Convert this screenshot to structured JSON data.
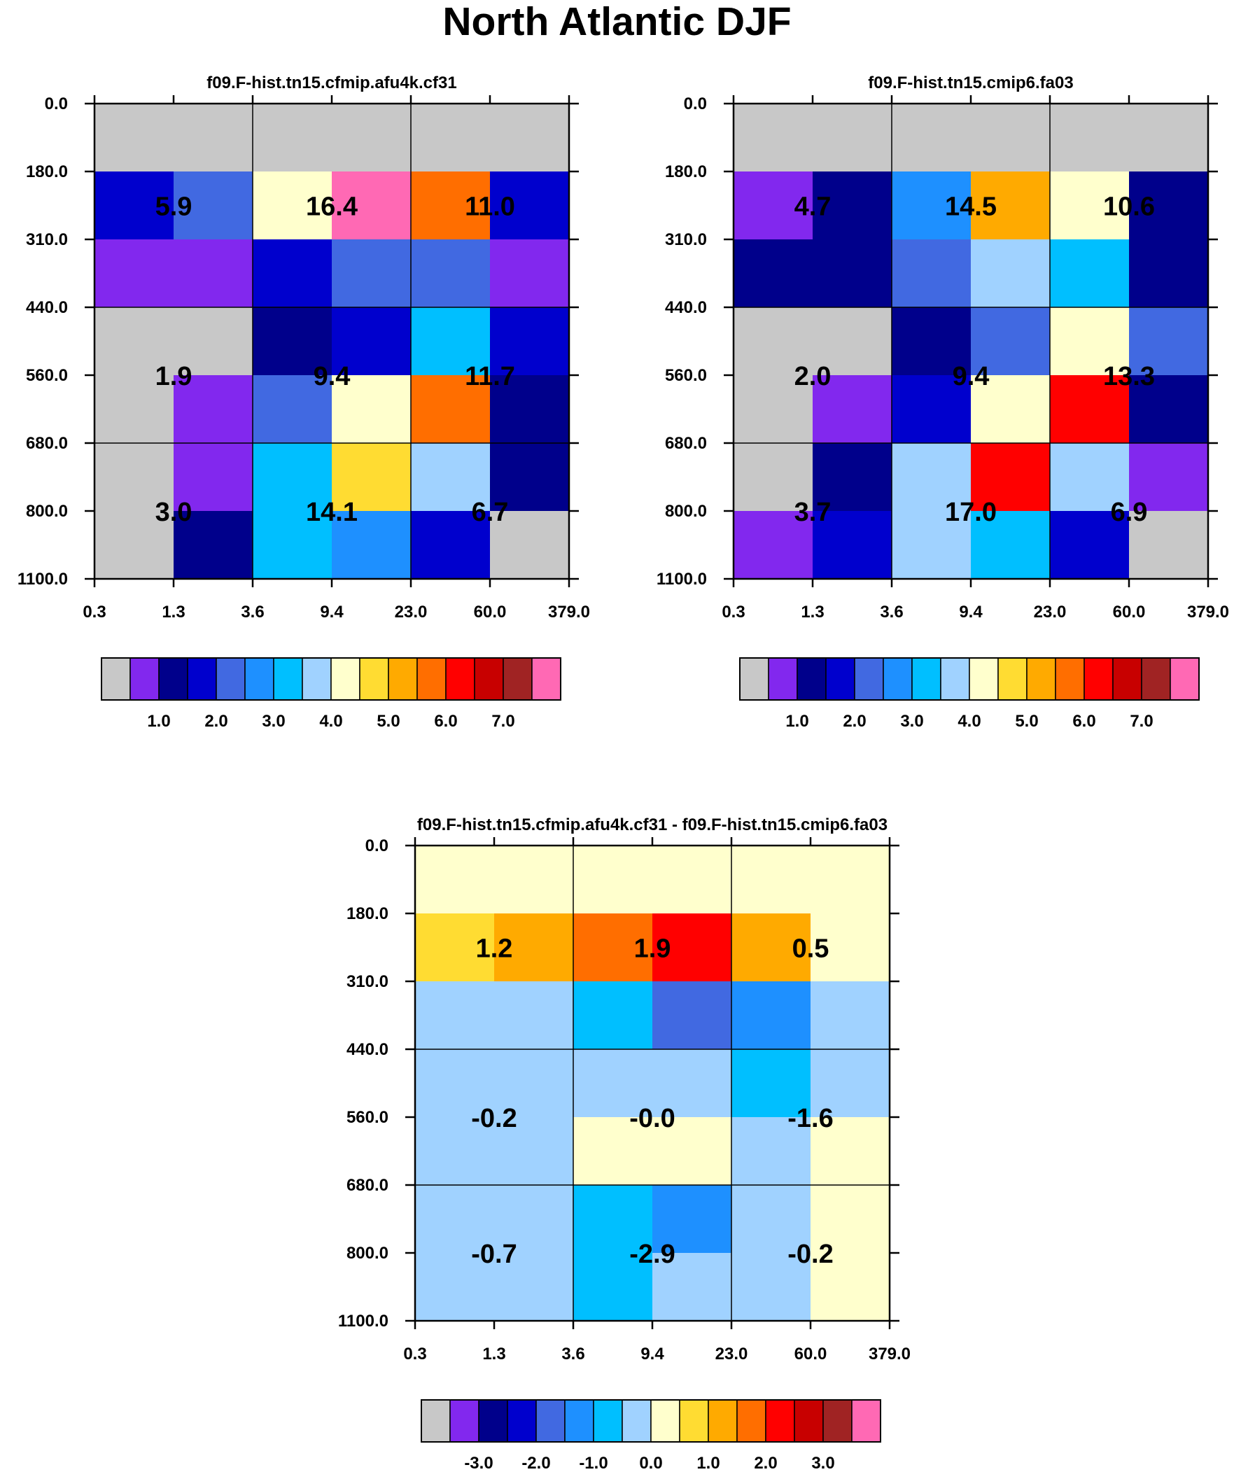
{
  "title": "North Atlantic DJF",
  "palette": {
    "c0": "#c8c8c8",
    "c1": "#8228ee",
    "c2": "#00008b",
    "c3": "#0000cd",
    "c4": "#4169e1",
    "c5": "#1e90ff",
    "c6": "#00bfff",
    "c7": "#a0d2ff",
    "c8": "#ffffcd",
    "c9": "#ffdc32",
    "c10": "#ffaa00",
    "c11": "#ff6e00",
    "c12": "#ff0000",
    "c13": "#c80000",
    "c14": "#a02323",
    "c15": "#ff69b4"
  },
  "chart_data": [
    {
      "type": "heatmap",
      "id": "panel-cf31",
      "title": "f09.F-hist.tn15.cfmip.afu4k.cf31",
      "xlabel": "",
      "ylabel": "",
      "x_ticks": [
        "0.3",
        "1.3",
        "3.6",
        "9.4",
        "23.0",
        "60.0",
        "379.0"
      ],
      "y_ticks": [
        "0.0",
        "180.0",
        "310.0",
        "440.0",
        "560.0",
        "680.0",
        "800.0",
        "1100.0"
      ],
      "grid": {
        "rows": [
          [
            "c0",
            "c0",
            "c0",
            "c0",
            "c0",
            "c0"
          ],
          [
            "c3",
            "c4",
            "c8",
            "c15",
            "c11",
            "c3"
          ],
          [
            "c1",
            "c1",
            "c3",
            "c4",
            "c4",
            "c1"
          ],
          [
            "c0",
            "c0",
            "c2",
            "c3",
            "c6",
            "c3"
          ],
          [
            "c0",
            "c1",
            "c4",
            "c8",
            "c11",
            "c2"
          ],
          [
            "c0",
            "c1",
            "c6",
            "c9",
            "c7",
            "c2"
          ],
          [
            "c0",
            "c2",
            "c6",
            "c5",
            "c3",
            "c0"
          ]
        ]
      },
      "labels": [
        {
          "text": "5.9",
          "block_row": 0,
          "block_col": 0
        },
        {
          "text": "16.4",
          "block_row": 0,
          "block_col": 1
        },
        {
          "text": "11.0",
          "block_row": 0,
          "block_col": 2
        },
        {
          "text": "1.9",
          "block_row": 1,
          "block_col": 0
        },
        {
          "text": "9.4",
          "block_row": 1,
          "block_col": 1
        },
        {
          "text": "11.7",
          "block_row": 1,
          "block_col": 2
        },
        {
          "text": "3.0",
          "block_row": 2,
          "block_col": 0
        },
        {
          "text": "14.1",
          "block_row": 2,
          "block_col": 1
        },
        {
          "text": "6.7",
          "block_row": 2,
          "block_col": 2
        }
      ],
      "colorbar": {
        "colors": [
          "c0",
          "c1",
          "c2",
          "c3",
          "c4",
          "c5",
          "c6",
          "c7",
          "c8",
          "c9",
          "c10",
          "c11",
          "c12",
          "c13",
          "c14",
          "c15"
        ],
        "tick_labels": [
          "1.0",
          "2.0",
          "3.0",
          "4.0",
          "5.0",
          "6.0",
          "7.0"
        ],
        "tick_positions": [
          2,
          4,
          6,
          8,
          10,
          12,
          14
        ]
      }
    },
    {
      "type": "heatmap",
      "id": "panel-fa03",
      "title": "f09.F-hist.tn15.cmip6.fa03",
      "xlabel": "",
      "ylabel": "",
      "x_ticks": [
        "0.3",
        "1.3",
        "3.6",
        "9.4",
        "23.0",
        "60.0",
        "379.0"
      ],
      "y_ticks": [
        "0.0",
        "180.0",
        "310.0",
        "440.0",
        "560.0",
        "680.0",
        "800.0",
        "1100.0"
      ],
      "grid": {
        "rows": [
          [
            "c0",
            "c0",
            "c0",
            "c0",
            "c0",
            "c0"
          ],
          [
            "c1",
            "c2",
            "c5",
            "c10",
            "c8",
            "c2"
          ],
          [
            "c2",
            "c2",
            "c4",
            "c7",
            "c6",
            "c2"
          ],
          [
            "c0",
            "c0",
            "c2",
            "c4",
            "c8",
            "c4"
          ],
          [
            "c0",
            "c1",
            "c3",
            "c8",
            "c12",
            "c2"
          ],
          [
            "c0",
            "c2",
            "c7",
            "c12",
            "c7",
            "c1"
          ],
          [
            "c1",
            "c3",
            "c7",
            "c6",
            "c3",
            "c0"
          ]
        ]
      },
      "labels": [
        {
          "text": "4.7",
          "block_row": 0,
          "block_col": 0
        },
        {
          "text": "14.5",
          "block_row": 0,
          "block_col": 1
        },
        {
          "text": "10.6",
          "block_row": 0,
          "block_col": 2
        },
        {
          "text": "2.0",
          "block_row": 1,
          "block_col": 0
        },
        {
          "text": "9.4",
          "block_row": 1,
          "block_col": 1
        },
        {
          "text": "13.3",
          "block_row": 1,
          "block_col": 2
        },
        {
          "text": "3.7",
          "block_row": 2,
          "block_col": 0
        },
        {
          "text": "17.0",
          "block_row": 2,
          "block_col": 1
        },
        {
          "text": "6.9",
          "block_row": 2,
          "block_col": 2
        }
      ],
      "colorbar": {
        "colors": [
          "c0",
          "c1",
          "c2",
          "c3",
          "c4",
          "c5",
          "c6",
          "c7",
          "c8",
          "c9",
          "c10",
          "c11",
          "c12",
          "c13",
          "c14",
          "c15"
        ],
        "tick_labels": [
          "1.0",
          "2.0",
          "3.0",
          "4.0",
          "5.0",
          "6.0",
          "7.0"
        ],
        "tick_positions": [
          2,
          4,
          6,
          8,
          10,
          12,
          14
        ]
      }
    },
    {
      "type": "heatmap",
      "id": "panel-diff",
      "title": "f09.F-hist.tn15.cfmip.afu4k.cf31 - f09.F-hist.tn15.cmip6.fa03",
      "xlabel": "",
      "ylabel": "",
      "x_ticks": [
        "0.3",
        "1.3",
        "3.6",
        "9.4",
        "23.0",
        "60.0",
        "379.0"
      ],
      "y_ticks": [
        "0.0",
        "180.0",
        "310.0",
        "440.0",
        "560.0",
        "680.0",
        "800.0",
        "1100.0"
      ],
      "grid": {
        "rows": [
          [
            "c8",
            "c8",
            "c8",
            "c8",
            "c8",
            "c8"
          ],
          [
            "c9",
            "c10",
            "c11",
            "c12",
            "c10",
            "c8"
          ],
          [
            "c7",
            "c7",
            "c6",
            "c4",
            "c5",
            "c7"
          ],
          [
            "c7",
            "c7",
            "c7",
            "c7",
            "c6",
            "c7"
          ],
          [
            "c7",
            "c7",
            "c8",
            "c8",
            "c7",
            "c8"
          ],
          [
            "c7",
            "c7",
            "c6",
            "c5",
            "c7",
            "c8"
          ],
          [
            "c7",
            "c7",
            "c6",
            "c7",
            "c7",
            "c8"
          ]
        ]
      },
      "labels": [
        {
          "text": "1.2",
          "block_row": 0,
          "block_col": 0
        },
        {
          "text": "1.9",
          "block_row": 0,
          "block_col": 1
        },
        {
          "text": "0.5",
          "block_row": 0,
          "block_col": 2
        },
        {
          "text": "-0.2",
          "block_row": 1,
          "block_col": 0
        },
        {
          "text": "-0.0",
          "block_row": 1,
          "block_col": 1
        },
        {
          "text": "-1.6",
          "block_row": 1,
          "block_col": 2
        },
        {
          "text": "-0.7",
          "block_row": 2,
          "block_col": 0
        },
        {
          "text": "-2.9",
          "block_row": 2,
          "block_col": 1
        },
        {
          "text": "-0.2",
          "block_row": 2,
          "block_col": 2
        }
      ],
      "colorbar": {
        "colors": [
          "c0",
          "c1",
          "c2",
          "c3",
          "c4",
          "c5",
          "c6",
          "c7",
          "c8",
          "c9",
          "c10",
          "c11",
          "c12",
          "c13",
          "c14",
          "c15"
        ],
        "tick_labels": [
          "-3.0",
          "-2.0",
          "-1.0",
          "0.0",
          "1.0",
          "2.0",
          "3.0"
        ],
        "tick_positions": [
          2,
          4,
          6,
          8,
          10,
          12,
          14
        ]
      }
    }
  ]
}
